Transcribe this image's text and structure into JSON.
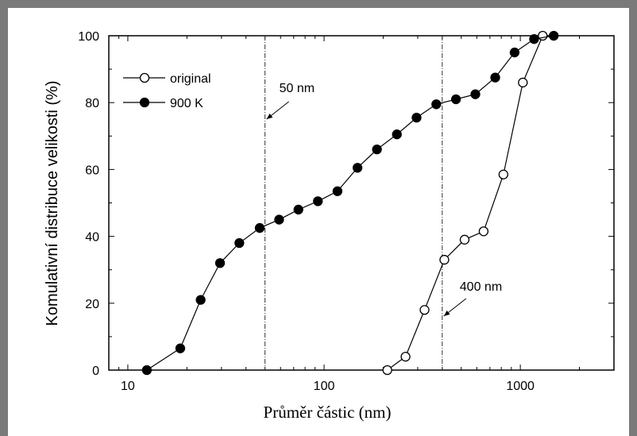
{
  "chart_data": {
    "type": "line",
    "xlabel": "Průměr částic (nm)",
    "ylabel": "Komulativní distribuce velikosti (%)",
    "xscale": "log",
    "xlim": [
      8,
      3000
    ],
    "ylim": [
      0,
      100
    ],
    "x_ticks": [
      10,
      100,
      1000
    ],
    "x_tick_labels": [
      "10",
      "100",
      "1000"
    ],
    "y_ticks": [
      0,
      20,
      40,
      60,
      80,
      100
    ],
    "y_tick_labels": [
      "0",
      "20",
      "40",
      "60",
      "80",
      "100"
    ],
    "grid": false,
    "legend_position": "top-left",
    "series": [
      {
        "name": "original",
        "marker": "open-circle",
        "x": [
          210,
          260,
          325,
          410,
          520,
          650,
          820,
          1030,
          1300
        ],
        "y": [
          0,
          4,
          18,
          33,
          39,
          41.5,
          58.5,
          86,
          100
        ]
      },
      {
        "name": "900 K",
        "marker": "filled-circle",
        "x": [
          12.5,
          18.5,
          23.5,
          29.5,
          37,
          47,
          59,
          74,
          93,
          117,
          148,
          186,
          235,
          296,
          373,
          470,
          590,
          745,
          935,
          1175,
          1480
        ],
        "y": [
          0,
          6.5,
          21,
          32,
          38,
          42.5,
          45,
          48,
          50.5,
          53.5,
          60.5,
          66,
          70.5,
          75.5,
          79.5,
          81,
          82.5,
          87.5,
          95,
          99,
          100
        ]
      }
    ],
    "reference_lines": [
      {
        "x": 50,
        "label": "50 nm"
      },
      {
        "x": 400,
        "label": "400 nm"
      }
    ]
  }
}
